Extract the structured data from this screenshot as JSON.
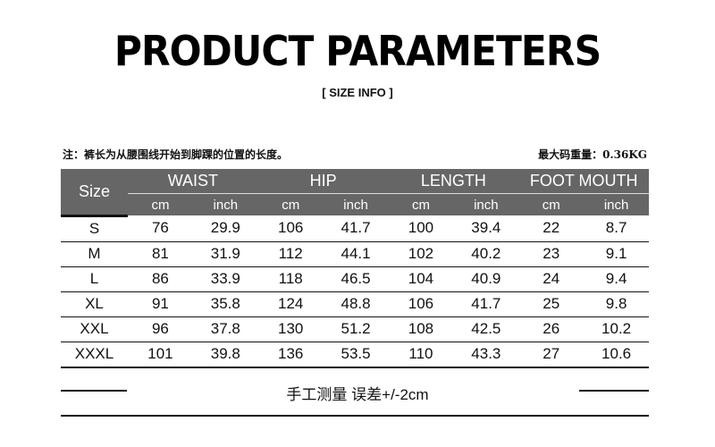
{
  "title": "PRODUCT PARAMETERS",
  "subtitle": "[ SIZE  INFO ]",
  "note": "注：裤长为从腰围线开始到脚踝的位置的长度。",
  "max_weight": "最大码重量：0.36KG",
  "table": {
    "size_header": "Size",
    "groups": [
      "WAIST",
      "HIP",
      "LENGTH",
      "FOOT MOUTH"
    ],
    "units": [
      "cm",
      "inch",
      "cm",
      "inch",
      "cm",
      "inch",
      "cm",
      "inch"
    ],
    "rows": [
      [
        "S",
        "76",
        "29.9",
        "106",
        "41.7",
        "100",
        "39.4",
        "22",
        "8.7"
      ],
      [
        "M",
        "81",
        "31.9",
        "112",
        "44.1",
        "102",
        "40.2",
        "23",
        "9.1"
      ],
      [
        "L",
        "86",
        "33.9",
        "118",
        "46.5",
        "104",
        "40.9",
        "24",
        "9.4"
      ],
      [
        "XL",
        "91",
        "35.8",
        "124",
        "48.8",
        "106",
        "41.7",
        "25",
        "9.8"
      ],
      [
        "XXL",
        "96",
        "37.8",
        "130",
        "51.2",
        "108",
        "42.5",
        "26",
        "10.2"
      ],
      [
        "XXXL",
        "101",
        "39.8",
        "136",
        "53.5",
        "110",
        "43.3",
        "27",
        "10.6"
      ]
    ]
  },
  "footer": "手工测量 误差+/-2cm",
  "colors": {
    "header_bg": "#666666",
    "header_text": "#ffffff"
  }
}
